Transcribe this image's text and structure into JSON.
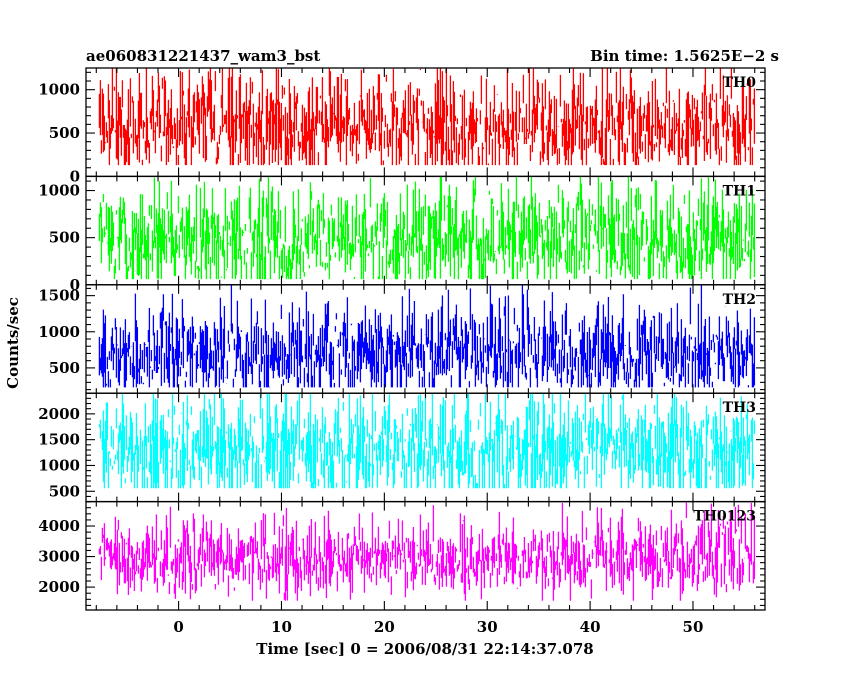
{
  "header": {
    "title": "ae060831221437_wam3_bst",
    "bin_time": "Bin time: 1.5625E−2 s"
  },
  "chart_data": {
    "type": "line",
    "xlabel": "Time [sec] 0 = 2006/08/31 22:14:37.078",
    "ylabel": "Counts/sec",
    "xlim": [
      -9,
      57
    ],
    "x_ticks": [
      0,
      10,
      20,
      30,
      40,
      50
    ],
    "x_data_range": [
      -7.7,
      56
    ],
    "bin_time_s": 0.015625,
    "panels": [
      {
        "name": "TH0",
        "color": "#ff0000",
        "ylim": [
          0,
          1250
        ],
        "yticks": [
          0,
          500,
          1000
        ],
        "mean": 560,
        "low": 130,
        "high": 1250,
        "noise_sd": 330
      },
      {
        "name": "TH1",
        "color": "#00ff00",
        "ylim": [
          0,
          1150
        ],
        "yticks": [
          0,
          500,
          1000
        ],
        "mean": 480,
        "low": 60,
        "high": 1150,
        "noise_sd": 290
      },
      {
        "name": "TH2",
        "color": "#0000ff",
        "ylim": [
          150,
          1650
        ],
        "yticks": [
          500,
          1000,
          1500
        ],
        "mean": 700,
        "low": 230,
        "high": 1650,
        "noise_sd": 330
      },
      {
        "name": "TH3",
        "color": "#00ffff",
        "ylim": [
          300,
          2400
        ],
        "yticks": [
          500,
          1000,
          1500,
          2000
        ],
        "mean": 1300,
        "low": 560,
        "high": 2400,
        "noise_sd": 560
      },
      {
        "name": "TH0123",
        "color": "#ff00ff",
        "ylim": [
          1250,
          4800
        ],
        "yticks": [
          2000,
          3000,
          4000
        ],
        "mean": 2950,
        "low": 1550,
        "high": 4800,
        "noise_sd": 620
      }
    ]
  }
}
